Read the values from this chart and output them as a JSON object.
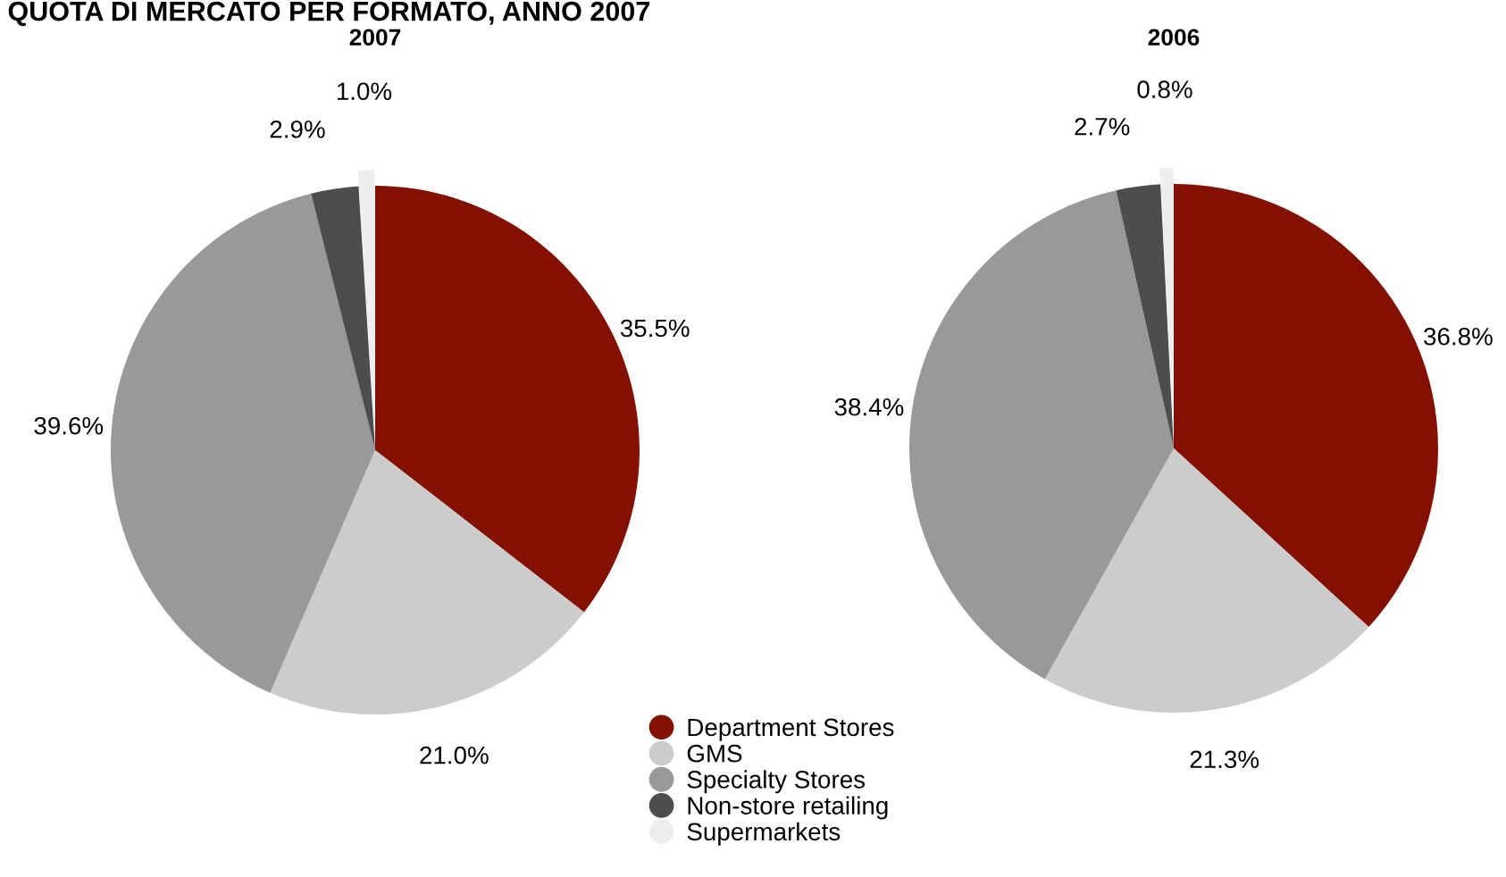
{
  "chart_data": [
    {
      "type": "pie",
      "title": "QUOTA DI MERCATO PER FORMATO, ANNO 2007",
      "subtitle": "2007",
      "categories": [
        "Department Stores",
        "GMS",
        "Specialty Stores",
        "Non-store retailing",
        "Supermarkets"
      ],
      "values": [
        35.5,
        21.0,
        39.6,
        2.9,
        1.0
      ],
      "colors": [
        "#841100",
        "#cccccc",
        "#999999",
        "#4d4d4d",
        "#eeeeee"
      ],
      "value_labels": [
        "35.5%",
        "21.0%",
        "39.6%",
        "2.9%",
        "1.0%"
      ],
      "legend": "bottom"
    },
    {
      "type": "pie",
      "title": "2006",
      "values": [
        36.8,
        21.3,
        38.4,
        2.7,
        0.8
      ],
      "colors": [
        "#841100",
        "#cccccc",
        "#999999",
        "#4d4d4d",
        "#eeeeee"
      ],
      "value_labels": [
        "36.8%",
        "21.3%",
        "38.4%",
        "2.7%",
        "0.8%"
      ]
    }
  ]
}
